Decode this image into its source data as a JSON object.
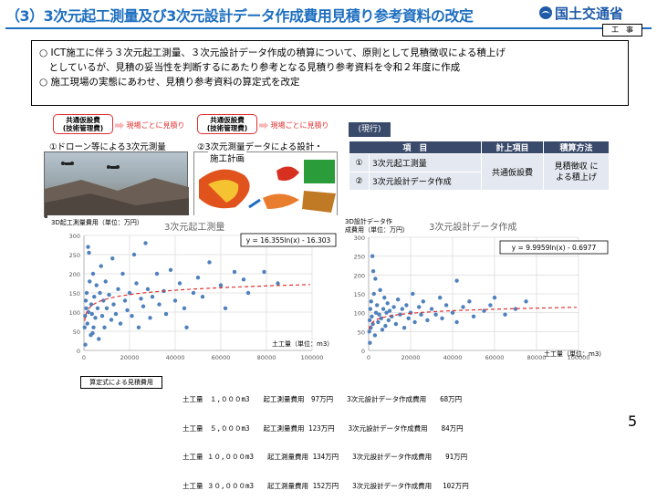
{
  "header": {
    "title": "（3）3次元起工測量及び3次元設計データ作成費用見積り参考資料の改定",
    "logo_text": "国土交通省",
    "tag": "工　事"
  },
  "summary": [
    "○ ICT施工に伴う３次元起工測量、３次元設計データ作成の積算について、原則として見積徴収による積上げ",
    "　としているが、見積の妥当性を判断するにあたり参考となる見積り参考資料を令和２年度に作成",
    "○ 施工現場の実態にあわせ、見積り参考資料の算定式を改定"
  ],
  "flows": [
    {
      "box_line1": "共通仮設費",
      "box_line2": "(技術管理費)",
      "arrow": "現場ごとに見積り"
    },
    {
      "box_line1": "共通仮設費",
      "box_line2": "(技術管理費)",
      "arrow": "現場ごとに見積り"
    }
  ],
  "photos": {
    "cap1": "①ドローン等による3次元測量",
    "cap2a": "②3次元測量データによる設計・",
    "cap2b": "施工計画"
  },
  "current": {
    "label": "(現行)",
    "headers": [
      "項　目",
      "計上項目",
      "積算方法"
    ],
    "rows": [
      {
        "no": "①",
        "item": "3次元起工測量"
      },
      {
        "no": "②",
        "item": "3次元設計データ作成"
      }
    ],
    "account": "共通仮設費",
    "method_line1": "見積徴収 に",
    "method_line2": "よる積上げ"
  },
  "chart_data": [
    {
      "type": "scatter",
      "title": "3次元起工測量",
      "ylabel": "3D起工測量費用（単位：万円）",
      "xlabel": "土工量（単位：m3）",
      "xlim": [
        0,
        100000
      ],
      "ylim": [
        0,
        300
      ],
      "x_ticks": [
        "0",
        "20000",
        "40000",
        "60000",
        "80000",
        "100000"
      ],
      "y_ticks": [
        "0",
        "50",
        "100",
        "150",
        "200",
        "250",
        "300"
      ],
      "trendline": "y = 16.355ln(x) - 16.303",
      "trend_a": 16.355,
      "trend_b": -16.303,
      "points": [
        [
          300,
          60
        ],
        [
          500,
          90
        ],
        [
          800,
          130
        ],
        [
          1000,
          110
        ],
        [
          1200,
          150
        ],
        [
          1500,
          70
        ],
        [
          2000,
          100
        ],
        [
          2500,
          180
        ],
        [
          3000,
          40
        ],
        [
          3200,
          120
        ],
        [
          3500,
          95
        ],
        [
          4000,
          200
        ],
        [
          4200,
          60
        ],
        [
          4500,
          140
        ],
        [
          5000,
          85
        ],
        [
          5500,
          170
        ],
        [
          6000,
          110
        ],
        [
          6500,
          30
        ],
        [
          7000,
          150
        ],
        [
          7500,
          220
        ],
        [
          8000,
          90
        ],
        [
          8500,
          130
        ],
        [
          9000,
          60
        ],
        [
          9500,
          180
        ],
        [
          10000,
          110
        ],
        [
          11000,
          145
        ],
        [
          12000,
          80
        ],
        [
          12500,
          240
        ],
        [
          13000,
          120
        ],
        [
          14000,
          95
        ],
        [
          15000,
          160
        ],
        [
          16000,
          70
        ],
        [
          17000,
          200
        ],
        [
          18000,
          130
        ],
        [
          19000,
          105
        ],
        [
          20000,
          150
        ],
        [
          21000,
          90
        ],
        [
          22000,
          250
        ],
        [
          23000,
          175
        ],
        [
          24000,
          60
        ],
        [
          25000,
          135
        ],
        [
          26000,
          115
        ],
        [
          27000,
          280
        ],
        [
          28000,
          160
        ],
        [
          29000,
          85
        ],
        [
          30000,
          140
        ],
        [
          32000,
          200
        ],
        [
          33000,
          120
        ],
        [
          35000,
          155
        ],
        [
          36000,
          95
        ],
        [
          38000,
          210
        ],
        [
          40000,
          130
        ],
        [
          42000,
          175
        ],
        [
          44000,
          110
        ],
        [
          45000,
          60
        ],
        [
          48000,
          150
        ],
        [
          50000,
          190
        ],
        [
          52000,
          140
        ],
        [
          55000,
          230
        ],
        [
          60000,
          170
        ],
        [
          62000,
          110
        ],
        [
          66000,
          205
        ],
        [
          70000,
          185
        ],
        [
          72000,
          150
        ],
        [
          79000,
          205
        ],
        [
          85000,
          175
        ],
        [
          1800,
          270
        ],
        [
          2200,
          255
        ],
        [
          3800,
          45
        ],
        [
          600,
          15
        ]
      ]
    },
    {
      "type": "scatter",
      "title": "3次元設計データ作成",
      "ylabel": "3D設計データ作成費用（単位：万円）",
      "xlabel": "土工量（単位：m3）",
      "xlim": [
        0,
        100000
      ],
      "ylim": [
        0,
        300
      ],
      "x_ticks": [
        "0",
        "20000",
        "40000",
        "60000",
        "80000",
        "100000"
      ],
      "y_ticks": [
        "0",
        "50",
        "100",
        "150",
        "200",
        "250",
        "300"
      ],
      "trendline": "y = 9.9959ln(x) - 0.6977",
      "trend_a": 9.9959,
      "trend_b": -0.6977,
      "points": [
        [
          300,
          50
        ],
        [
          500,
          80
        ],
        [
          800,
          110
        ],
        [
          1000,
          60
        ],
        [
          1200,
          130
        ],
        [
          1500,
          90
        ],
        [
          2000,
          70
        ],
        [
          2500,
          150
        ],
        [
          3000,
          40
        ],
        [
          3500,
          100
        ],
        [
          4000,
          120
        ],
        [
          4500,
          75
        ],
        [
          5000,
          95
        ],
        [
          5500,
          160
        ],
        [
          6000,
          85
        ],
        [
          6500,
          55
        ],
        [
          7000,
          110
        ],
        [
          7500,
          140
        ],
        [
          8000,
          65
        ],
        [
          8500,
          100
        ],
        [
          9000,
          125
        ],
        [
          9500,
          80
        ],
        [
          10000,
          105
        ],
        [
          11000,
          90
        ],
        [
          12000,
          115
        ],
        [
          13000,
          70
        ],
        [
          14000,
          135
        ],
        [
          15000,
          95
        ],
        [
          16000,
          110
        ],
        [
          17000,
          60
        ],
        [
          18000,
          120
        ],
        [
          19000,
          85
        ],
        [
          20000,
          100
        ],
        [
          21000,
          150
        ],
        [
          22000,
          75
        ],
        [
          24000,
          115
        ],
        [
          25000,
          95
        ],
        [
          26000,
          130
        ],
        [
          28000,
          80
        ],
        [
          30000,
          110
        ],
        [
          32000,
          95
        ],
        [
          34000,
          140
        ],
        [
          35000,
          85
        ],
        [
          37000,
          120
        ],
        [
          40000,
          100
        ],
        [
          42000,
          75
        ],
        [
          45000,
          115
        ],
        [
          48000,
          130
        ],
        [
          50000,
          90
        ],
        [
          55000,
          105
        ],
        [
          58000,
          120
        ],
        [
          60000,
          140
        ],
        [
          65000,
          95
        ],
        [
          70000,
          110
        ],
        [
          75000,
          130
        ],
        [
          1800,
          250
        ],
        [
          2200,
          210
        ],
        [
          3200,
          190
        ],
        [
          600,
          20
        ],
        [
          42000,
          185
        ]
      ]
    }
  ],
  "cost": {
    "box": "算定式による見積費用",
    "lines": [
      "土工量　１,０００m3　　起工測量費用　97万円　　3次元設計データ作成費用　　68万円",
      "土工量　５,０００m3　　起工測量費用 123万円　　3次元設計データ作成費用　　84万円",
      "土工量 １０,０００m3　　起工測量費用 134万円　　3次元設計データ作成費用　　91万円",
      "土工量 ３０,０００m3　　起工測量費用 152万円　　3次元設計データ作成費用　 102万円"
    ]
  },
  "page_number": "5"
}
